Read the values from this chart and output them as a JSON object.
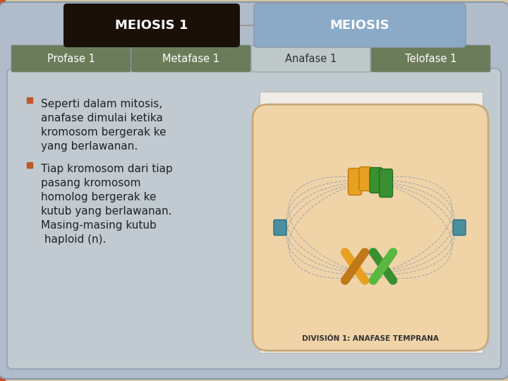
{
  "title_left": "MEIOSIS 1",
  "title_right": "MEIOSIS",
  "tabs": [
    "Profase 1",
    "Metafase 1",
    "Anafase 1",
    "Telofase 1"
  ],
  "active_tab": 2,
  "tab_active_color": "#bec8c8",
  "tab_inactive_color": "#6b7c5a",
  "tab_text_color": "#ffffff",
  "active_tab_text_color": "#333333",
  "title_left_bg": "#1a1008",
  "title_right_bg": "#8aaac8",
  "title_text_color": "#ffffff",
  "main_bg": "#b0bcca",
  "outer_bg": "#d4c4a0",
  "content_bg": "#c0cad0",
  "bullet_color": "#c05828",
  "bullet1_lines": [
    "Seperti dalam mitosis,",
    "anafase dimulai ketika",
    "kromosom bergerak ke",
    "yang berlawanan."
  ],
  "bullet2_lines": [
    "Tiap kromosom dari tiap",
    "pasang kromosom",
    "homolog bergerak ke",
    "kutub yang berlawanan.",
    "Masing-masing kutub",
    " haploid (n)."
  ],
  "figsize": [
    7.2,
    5.4
  ],
  "dpi": 100
}
